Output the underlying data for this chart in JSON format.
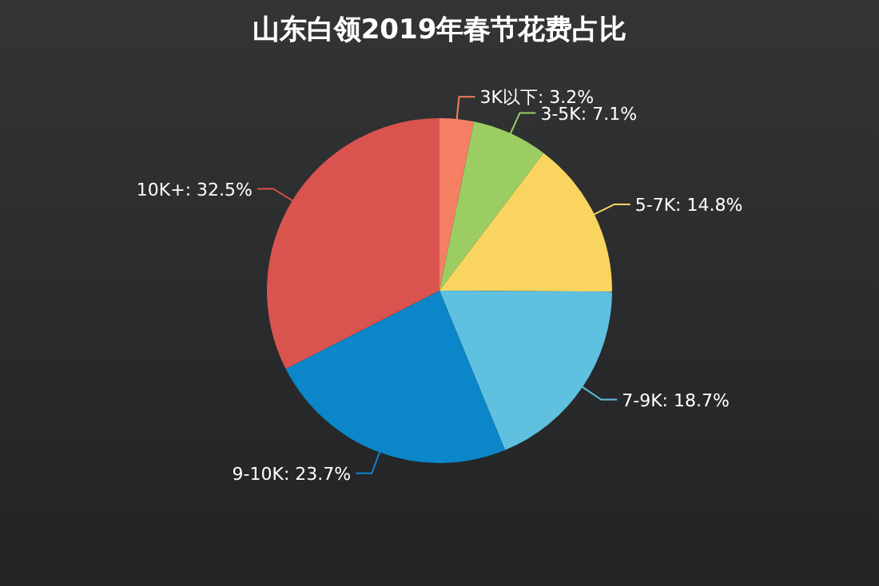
{
  "chart_data": {
    "type": "pie",
    "title": "山东白领2019年春节花费占比",
    "categories": [
      "3K以下",
      "3-5K",
      "5-7K",
      "7-9K",
      "9-10K",
      "10K+"
    ],
    "values": [
      3.2,
      7.1,
      14.8,
      18.7,
      23.7,
      32.5
    ],
    "value_labels": [
      "3.2%",
      "7.1%",
      "14.8%",
      "18.7%",
      "23.7%",
      "32.5%"
    ],
    "colors": [
      "#f47f63",
      "#9ccd63",
      "#f9d55f",
      "#5fc0e0",
      "#0b86c9",
      "#d9534f"
    ]
  }
}
